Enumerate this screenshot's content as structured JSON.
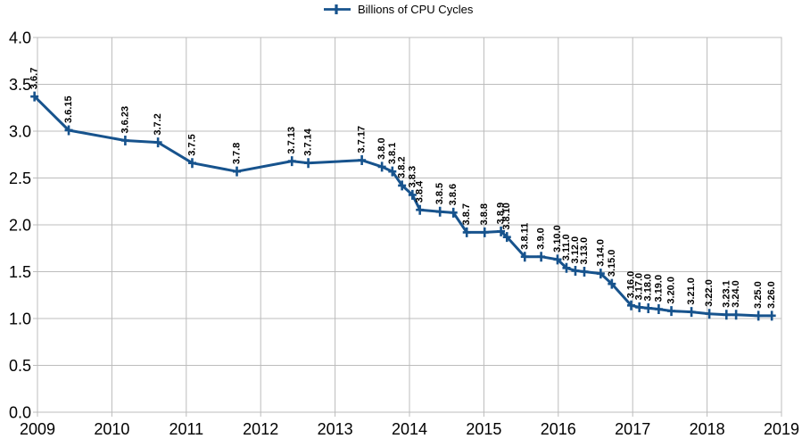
{
  "chart_data": {
    "type": "line",
    "title": "",
    "legend": {
      "label": "Billions of CPU Cycles",
      "position": "top-center",
      "marker": "plus-on-line"
    },
    "xlabel": "",
    "ylabel": "",
    "grid": true,
    "x_axis": {
      "min": 2009,
      "max": 2019,
      "tick_labels": [
        "2009",
        "2010",
        "2011",
        "2012",
        "2013",
        "2014",
        "2015",
        "2016",
        "2017",
        "2018",
        "2019"
      ]
    },
    "y_axis": {
      "min": 0.0,
      "max": 4.0,
      "step": 0.5,
      "tick_labels": [
        "0.0",
        "0.5",
        "1.0",
        "1.5",
        "2.0",
        "2.5",
        "3.0",
        "3.5",
        "4.0"
      ]
    },
    "colors": {
      "series": "#17538d",
      "grid": "#bcbcbc",
      "axis_text": "#000000",
      "background": "#ffffff"
    },
    "series": [
      {
        "name": "Billions of CPU Cycles",
        "color": "#17538d",
        "points": [
          {
            "label": "3.6.7",
            "x": 2008.96,
            "y": 3.37
          },
          {
            "label": "3.6.15",
            "x": 2009.42,
            "y": 3.01
          },
          {
            "label": "3.6.23",
            "x": 2010.18,
            "y": 2.9
          },
          {
            "label": "3.7.2",
            "x": 2010.62,
            "y": 2.88
          },
          {
            "label": "3.7.5",
            "x": 2011.08,
            "y": 2.66
          },
          {
            "label": "3.7.8",
            "x": 2011.68,
            "y": 2.57
          },
          {
            "label": "3.7.13",
            "x": 2012.42,
            "y": 2.68
          },
          {
            "label": "3.7.14",
            "x": 2012.64,
            "y": 2.66
          },
          {
            "label": "3.7.17",
            "x": 2013.36,
            "y": 2.69
          },
          {
            "label": "3.8.0",
            "x": 2013.63,
            "y": 2.62
          },
          {
            "label": "3.8.1",
            "x": 2013.77,
            "y": 2.57
          },
          {
            "label": "3.8.2",
            "x": 2013.9,
            "y": 2.42
          },
          {
            "label": "3.8.3",
            "x": 2014.04,
            "y": 2.32
          },
          {
            "label": "3.8.4",
            "x": 2014.14,
            "y": 2.16
          },
          {
            "label": "3.8.5",
            "x": 2014.41,
            "y": 2.14
          },
          {
            "label": "3.8.6",
            "x": 2014.59,
            "y": 2.13
          },
          {
            "label": "3.8.7",
            "x": 2014.77,
            "y": 1.92
          },
          {
            "label": "3.8.8",
            "x": 2015.01,
            "y": 1.92
          },
          {
            "label": "3.8.9",
            "x": 2015.23,
            "y": 1.93
          },
          {
            "label": "3.8.10",
            "x": 2015.31,
            "y": 1.87
          },
          {
            "label": "3.8.11",
            "x": 2015.55,
            "y": 1.66
          },
          {
            "label": "3.9.0",
            "x": 2015.77,
            "y": 1.66
          },
          {
            "label": "3.10.0",
            "x": 2015.99,
            "y": 1.63
          },
          {
            "label": "3.11.0",
            "x": 2016.11,
            "y": 1.54
          },
          {
            "label": "3.12.0",
            "x": 2016.23,
            "y": 1.51
          },
          {
            "label": "3.13.0",
            "x": 2016.35,
            "y": 1.5
          },
          {
            "label": "3.14.0",
            "x": 2016.57,
            "y": 1.48
          },
          {
            "label": "3.15.0",
            "x": 2016.72,
            "y": 1.37
          },
          {
            "label": "3.16.0",
            "x": 2016.98,
            "y": 1.14
          },
          {
            "label": "3.17.0",
            "x": 2017.09,
            "y": 1.12
          },
          {
            "label": "3.18.0",
            "x": 2017.21,
            "y": 1.11
          },
          {
            "label": "3.19.0",
            "x": 2017.35,
            "y": 1.1
          },
          {
            "label": "3.20.0",
            "x": 2017.52,
            "y": 1.08
          },
          {
            "label": "3.21.0",
            "x": 2017.79,
            "y": 1.07
          },
          {
            "label": "3.22.0",
            "x": 2018.03,
            "y": 1.05
          },
          {
            "label": "3.23.1",
            "x": 2018.26,
            "y": 1.04
          },
          {
            "label": "3.24.0",
            "x": 2018.39,
            "y": 1.04
          },
          {
            "label": "3.25.0",
            "x": 2018.69,
            "y": 1.03
          },
          {
            "label": "3.26.0",
            "x": 2018.87,
            "y": 1.03
          }
        ]
      }
    ]
  }
}
